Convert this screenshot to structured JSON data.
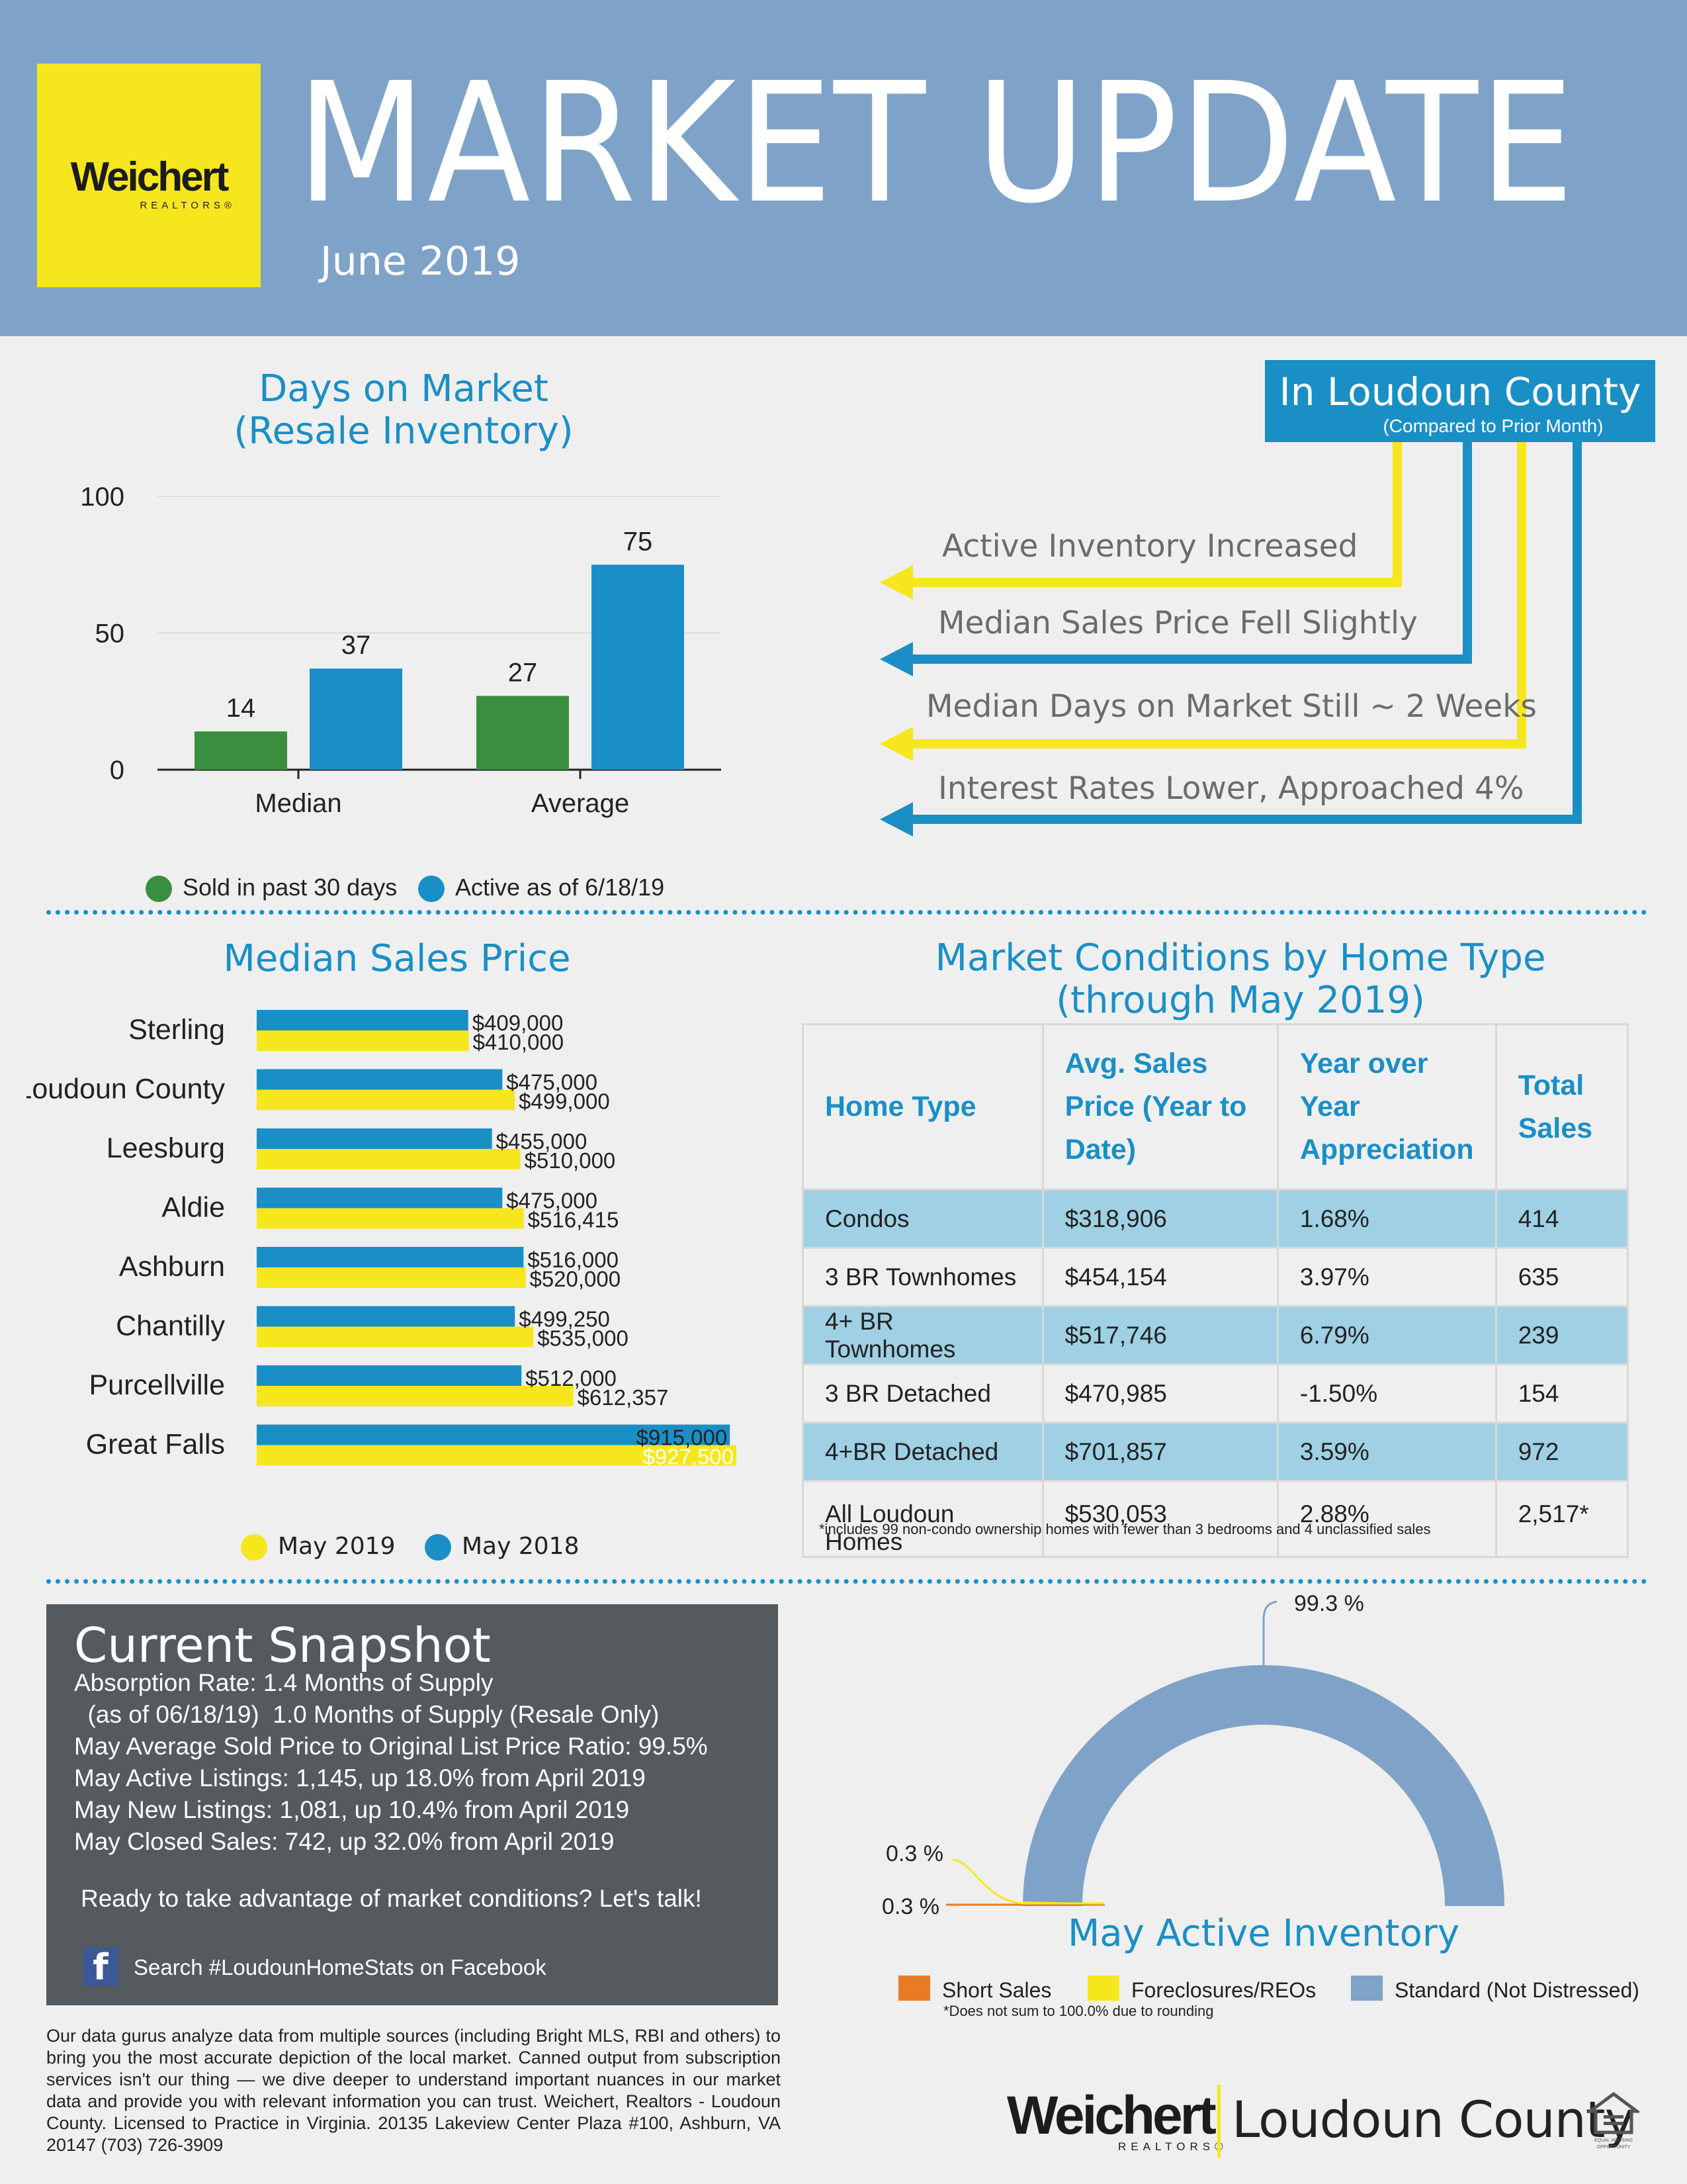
{
  "header": {
    "logo_word": "Weichert",
    "logo_sub": "REALTORS®",
    "title": "MARKET UPDATE",
    "subtitle": "June 2019"
  },
  "days_on_market": {
    "title_line1": "Days on Market",
    "title_line2": "(Resale Inventory)",
    "legend": [
      "Sold in past 30 days",
      "Active as of 6/18/19"
    ]
  },
  "loudoun": {
    "title": "In Loudoun County",
    "subtitle": "(Compared to Prior Month)",
    "points": [
      "Active Inventory Increased",
      "Median Sales Price Fell Slightly",
      "Median Days on Market Still ~ 2 Weeks",
      "Interest Rates Lower, Approached 4%"
    ]
  },
  "median_sales_price": {
    "title": "Median Sales Price",
    "legend": [
      "May 2019",
      "May 2018"
    ]
  },
  "market_conditions": {
    "title_line1": "Market Conditions by Home Type",
    "title_line2": "(through May 2019)",
    "headers": [
      "Home Type",
      "Avg. Sales Price (Year to Date)",
      "Year over Year Appreciation",
      "Total Sales"
    ],
    "rows": [
      [
        "Condos",
        "$318,906",
        "1.68%",
        "414"
      ],
      [
        "3 BR Townhomes",
        "$454,154",
        "3.97%",
        "635"
      ],
      [
        "4+ BR Townhomes",
        "$517,746",
        "6.79%",
        "239"
      ],
      [
        "3 BR Detached",
        "$470,985",
        "-1.50%",
        "154"
      ],
      [
        "4+BR Detached",
        "$701,857",
        "3.59%",
        "972"
      ],
      [
        "All Loudoun Homes",
        "$530,053",
        "2.88%",
        "2,517*"
      ]
    ],
    "footnote": "*includes 99 non-condo ownership homes with fewer than 3 bedrooms and 4 unclassified sales"
  },
  "snapshot": {
    "title": "Current Snapshot",
    "lines": [
      "Absorption Rate:   1.4 Months of Supply",
      "  (as of 06/18/19)  1.0 Months of Supply (Resale Only)",
      "May Average Sold Price to Original List Price Ratio: 99.5%",
      "May Active Listings: 1,145, up 18.0% from April 2019",
      "May New Listings: 1,081, up 10.4% from April 2019",
      "May Closed Sales: 742, up 32.0% from April 2019"
    ],
    "cta": "Ready to take advantage of market conditions? Let's talk!",
    "facebook_icon": "facebook-icon",
    "facebook_text": "Search #LoudounHomeStats on Facebook"
  },
  "disclaimer": "Our data gurus analyze data from multiple sources (including Bright MLS, RBI and others) to bring you the most accurate depiction of the local market. Canned output from subscription services isn't our thing — we dive deeper to understand important nuances in our market data and provide you with relevant information you can trust. Weichert, Realtors - Loudoun County. Licensed to Practice in Virginia. 20135 Lakeview Center Plaza #100, Ashburn, VA 20147   (703) 726-3909",
  "footer": {
    "logo_word": "Weichert",
    "logo_sub": "REALTORS®",
    "county": "Loudoun County",
    "eho_icon": "equal-housing-opportunity-icon",
    "eho_text": "EQUAL HOUSING OPPORTUNITY"
  },
  "colors": {
    "header_bg": "#7fa3c8",
    "logo_yellow": "#f6e61e",
    "accent_blue": "#1a8fc6",
    "bar_green": "#3a8f3e",
    "bar_yellow": "#f6e61e",
    "table_shade": "#9fd0e4",
    "donut_standard": "#7fa3c8",
    "donut_short": "#e87b24",
    "donut_foreclosure": "#f6e61e"
  },
  "chart_data": [
    {
      "type": "bar",
      "title": "Days on Market (Resale Inventory)",
      "categories": [
        "Median",
        "Average"
      ],
      "series": [
        {
          "name": "Sold in past 30 days",
          "values": [
            14,
            27
          ]
        },
        {
          "name": "Active as of 6/18/19",
          "values": [
            37,
            75
          ]
        }
      ],
      "yticks": [
        0,
        50,
        100
      ],
      "ylim": [
        0,
        100
      ],
      "grid": true,
      "legend": "bottom"
    },
    {
      "type": "bar",
      "orientation": "horizontal",
      "title": "Median Sales Price",
      "categories": [
        "Sterling",
        "Loudoun County",
        "Leesburg",
        "Aldie",
        "Ashburn",
        "Chantilly",
        "Purcellville",
        "Great Falls"
      ],
      "series": [
        {
          "name": "May 2018",
          "values": [
            409000,
            475000,
            455000,
            475000,
            516000,
            499250,
            512000,
            915000
          ],
          "labels": [
            "$409,000",
            "$475,000",
            "$455,000",
            "$475,000",
            "$516,000",
            "$499,250",
            "$512,000",
            "$915,000"
          ]
        },
        {
          "name": "May 2019",
          "values": [
            410000,
            499000,
            510000,
            516415,
            520000,
            535000,
            612357,
            927500
          ],
          "labels": [
            "$410,000",
            "$499,000",
            "$510,000",
            "$516,415",
            "$520,000",
            "$535,000",
            "$612,357",
            "$927,500"
          ]
        }
      ],
      "legend": "bottom"
    },
    {
      "type": "pie",
      "variant": "half-donut",
      "title": "May Active Inventory",
      "labels": [
        "Short Sales",
        "Foreclosures/REOs",
        "Standard (Not Distressed)"
      ],
      "values": [
        0.3,
        0.3,
        99.3
      ],
      "value_labels": [
        "0.3 %",
        "0.3 %",
        "99.3 %"
      ],
      "note": "*Does not sum to 100.0% due to rounding",
      "legend": "bottom"
    }
  ]
}
